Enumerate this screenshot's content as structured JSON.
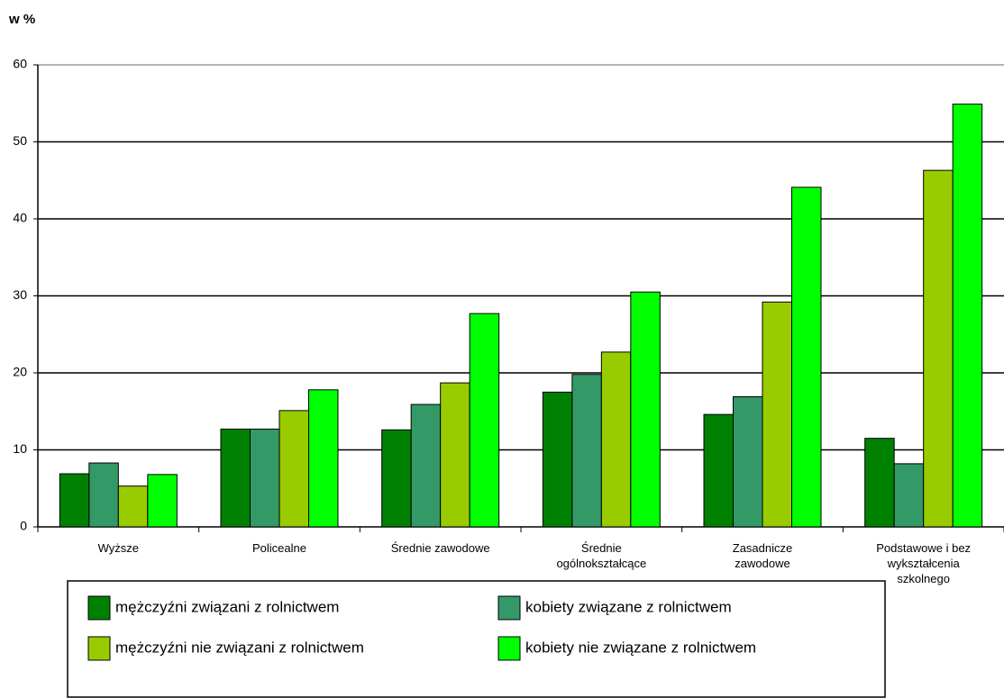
{
  "chart_data": {
    "type": "bar",
    "y_label": "w %",
    "categories": [
      "Wyższe",
      "Policealne",
      "Średnie zawodowe",
      "Średnie ogólnokształcące",
      "Zasadnicze zawodowe",
      "Podstawowe i bez wykształcenia szkolnego"
    ],
    "series": [
      {
        "name": "mężczyźni związani z rolnictwem",
        "color": "#008000",
        "values": [
          6.9,
          12.7,
          12.6,
          17.5,
          14.6,
          11.5
        ]
      },
      {
        "name": "kobiety związane z rolnictwem",
        "color": "#339966",
        "values": [
          8.3,
          12.7,
          15.9,
          19.8,
          16.9,
          8.2
        ]
      },
      {
        "name": "mężczyźni nie związani z rolnictwem",
        "color": "#99cc00",
        "values": [
          5.3,
          15.1,
          18.7,
          22.7,
          29.2,
          46.3
        ]
      },
      {
        "name": "kobiety nie związane z rolnictwem",
        "color": "#00ff00",
        "values": [
          6.8,
          17.8,
          27.7,
          30.5,
          44.1,
          54.9
        ]
      }
    ],
    "ylim": [
      0,
      60
    ],
    "yticks": [
      0,
      10,
      20,
      30,
      40,
      50,
      60
    ],
    "grid": true,
    "legend": "bottom"
  }
}
